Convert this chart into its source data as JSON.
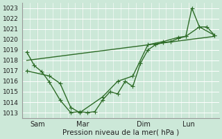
{
  "title": "",
  "xlabel": "Pression niveau de la mer( hPa )",
  "ylabel": "",
  "background_color": "#cce8d8",
  "grid_color": "#ffffff",
  "line_color": "#2d6b27",
  "ylim": [
    1012.5,
    1023.5
  ],
  "yticks": [
    1013,
    1014,
    1015,
    1016,
    1017,
    1018,
    1019,
    1020,
    1021,
    1022,
    1023
  ],
  "xtick_labels": [
    "Sam",
    "Mar",
    "Dim",
    "Lun"
  ],
  "xtick_positions": [
    1,
    4,
    8,
    11
  ],
  "vline_positions": [
    1,
    4,
    8,
    11
  ],
  "xlim": [
    0,
    13
  ],
  "series1_x": [
    0.3,
    0.8,
    1.3,
    1.8,
    2.5,
    3.2,
    3.8,
    4.3,
    4.8,
    5.3,
    5.8,
    6.3,
    6.8,
    7.3,
    7.8,
    8.3,
    8.8,
    9.3,
    9.8,
    10.3,
    10.8,
    11.2,
    11.7,
    12.2,
    12.7
  ],
  "series1_y": [
    1018.8,
    1017.5,
    1016.9,
    1015.9,
    1014.2,
    1013.0,
    1013.1,
    1013.0,
    1013.1,
    1014.2,
    1015.0,
    1014.8,
    1016.0,
    1015.5,
    1017.7,
    1019.0,
    1019.5,
    1019.7,
    1019.8,
    1020.1,
    1020.3,
    1023.0,
    1021.2,
    1021.2,
    1020.4
  ],
  "series2_x": [
    0.3,
    1.8,
    2.5,
    3.2,
    3.8,
    5.3,
    6.3,
    7.3,
    8.3,
    9.3,
    10.3,
    10.8,
    11.7,
    12.7
  ],
  "series2_y": [
    1017.0,
    1016.5,
    1015.8,
    1013.5,
    1013.0,
    1014.5,
    1016.0,
    1016.5,
    1019.5,
    1019.8,
    1020.2,
    1020.3,
    1021.2,
    1020.4
  ],
  "series3_x": [
    0.3,
    12.7
  ],
  "series3_y": [
    1018.0,
    1020.3
  ],
  "marker_size": 4,
  "line_width": 1.0
}
